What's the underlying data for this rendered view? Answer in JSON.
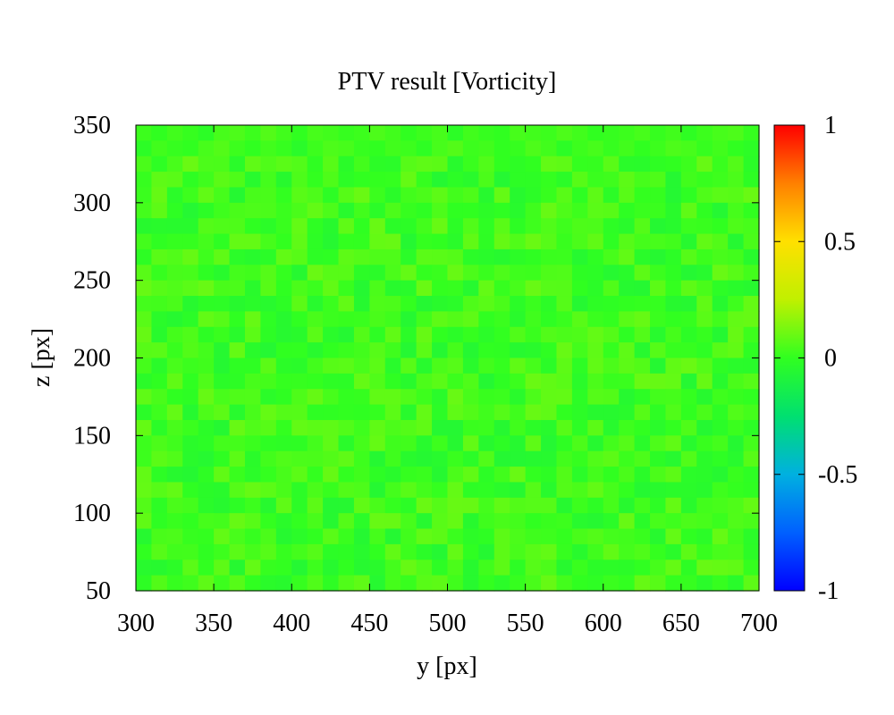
{
  "chart_data": {
    "type": "heatmap",
    "title": "PTV result [Vorticity]",
    "xlabel": "y [px]",
    "ylabel": "z [px]",
    "xlim": [
      300,
      700
    ],
    "ylim": [
      50,
      350
    ],
    "x_ticks": [
      "300",
      "350",
      "400",
      "450",
      "500",
      "550",
      "600",
      "650",
      "700"
    ],
    "y_ticks": [
      "50",
      "100",
      "150",
      "200",
      "250",
      "300",
      "350"
    ],
    "colorbar": {
      "range": [
        -1,
        1
      ],
      "ticks": [
        "1",
        "0.5",
        "0",
        "-0.5",
        "-1"
      ],
      "colormap": "jet",
      "colors": [
        "#0000ff",
        "#00a0ff",
        "#00e060",
        "#40ff00",
        "#c8ff00",
        "#ffe000",
        "#ff8000",
        "#ff0000"
      ]
    },
    "grid": {
      "x_start": 300,
      "x_step": 10,
      "nx": 40,
      "y_start": 50,
      "y_step": 10,
      "ny": 30,
      "value_range_observed": [
        -0.15,
        0.12
      ],
      "note_values": "vorticity field near zero everywhere (greens/yellow-greens)"
    },
    "sample_values_rows_top_to_bottom": [
      [
        0.02,
        0.0,
        0.03,
        0.01,
        -0.02,
        0.04,
        0.05,
        0.02,
        0.06,
        0.03,
        0.0,
        0.04,
        0.03,
        0.01,
        0.02,
        0.05,
        0.03,
        0.0,
        0.02,
        0.04,
        -0.02,
        0.03,
        0.01,
        0.0,
        0.04,
        0.03,
        0.02,
        0.05,
        0.03,
        0.0,
        0.01,
        0.02,
        0.04,
        0.01,
        0.03,
        -0.01,
        0.02,
        0.04,
        0.05,
        0.01
      ],
      [
        -0.02,
        0.03,
        0.01,
        0.0,
        0.04,
        0.06,
        0.02,
        0.0,
        0.03,
        0.01,
        -0.03,
        0.02,
        0.05,
        0.04,
        0.01,
        0.0,
        0.03,
        0.02,
        -0.01,
        0.04,
        0.06,
        0.02,
        0.03,
        0.0,
        0.01,
        0.05,
        0.03,
        -0.02,
        0.02,
        0.04,
        0.01,
        0.03,
        0.0,
        0.02,
        0.05,
        0.04,
        0.01,
        0.03,
        0.0,
        -0.02
      ]
    ]
  }
}
